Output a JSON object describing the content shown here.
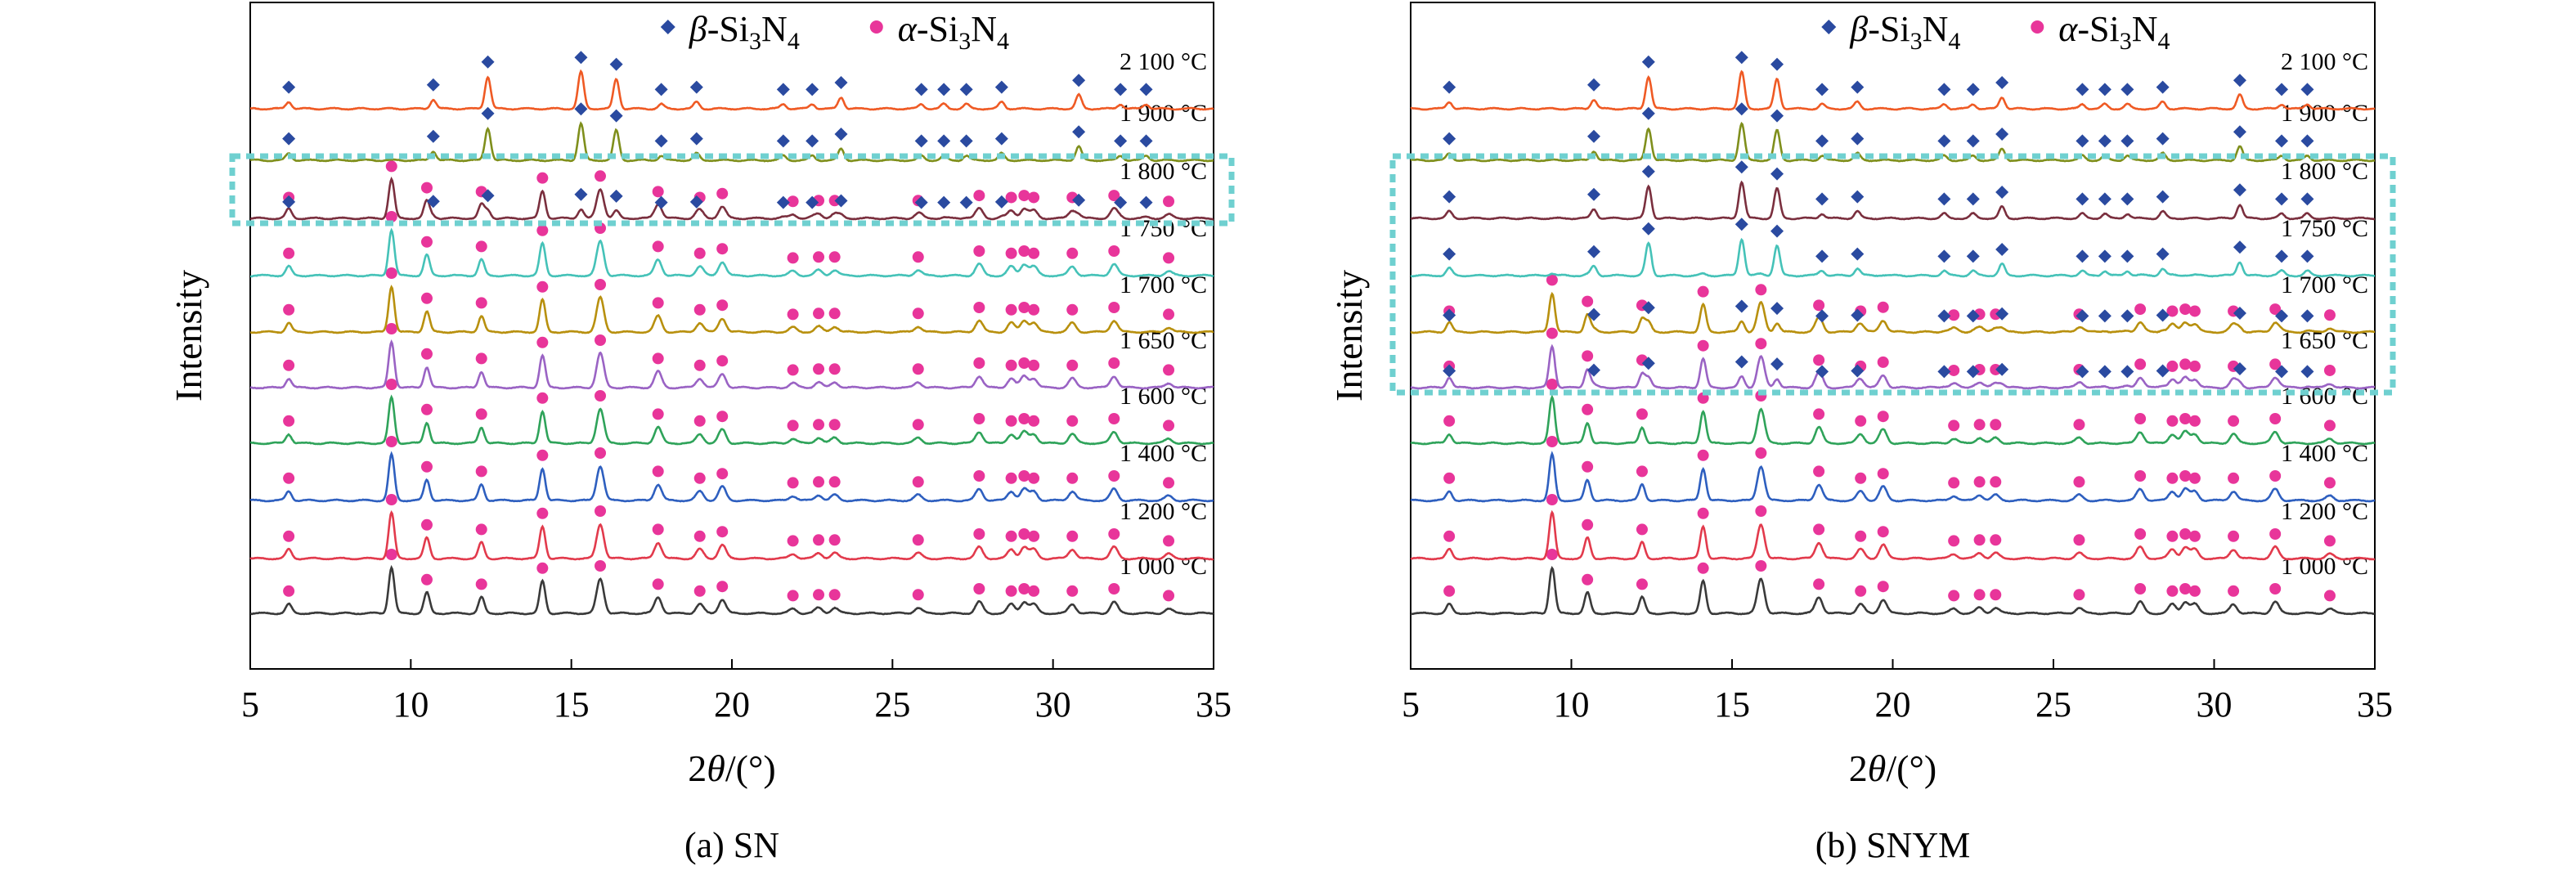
{
  "figure": {
    "panels": [
      {
        "id": "a",
        "caption": "(a) SN",
        "xlabel": "2θ/(°)",
        "xlabel_main": "2",
        "xlabel_italic": "θ",
        "xlabel_tail": "/(°)",
        "ylabel": "Intensity",
        "legend": {
          "beta": "β-Si3N4",
          "alpha": "α-Si3N4"
        },
        "highlight_temps": [
          "1 800 °C"
        ]
      },
      {
        "id": "b",
        "caption": "(b) SNYM",
        "xlabel": "2θ/(°)",
        "xlabel_main": "2",
        "xlabel_italic": "θ",
        "xlabel_tail": "/(°)",
        "ylabel": "Intensity",
        "legend": {
          "beta": "β-Si3N4",
          "alpha": "α-Si3N4"
        },
        "highlight_temps": [
          "1 800 °C",
          "1 750 °C",
          "1 700 °C",
          "1 650 °C"
        ]
      }
    ],
    "legend_beta_prefix": "β",
    "legend_alpha_prefix": "α",
    "legend_suffix": "-Si",
    "legend_sub1": "3",
    "legend_mid": "N",
    "legend_sub2": "4"
  },
  "chart_data": [
    {
      "type": "line",
      "title": "",
      "caption": "(a) SN",
      "xlabel": "2θ/(°)",
      "ylabel": "Intensity",
      "xlim": [
        5,
        35
      ],
      "xticks": [
        5,
        10,
        15,
        20,
        25,
        30,
        35
      ],
      "ylim": [
        0,
        13
      ],
      "legend": [
        "β-Si3N4",
        "α-Si3N4"
      ],
      "legend_position": "top",
      "grid": false,
      "colors": {
        "1 000 °C": "#3a3a3a",
        "1 200 °C": "#e23a4c",
        "1 400 °C": "#2e5fbf",
        "1 600 °C": "#2fa35a",
        "1 650 °C": "#9a63c4",
        "1 700 °C": "#b8900e",
        "1 750 °C": "#45c2b8",
        "1 800 °C": "#7a2f3e",
        "1 900 °C": "#7f8f1c",
        "2 100 °C": "#ef5a24",
        "alpha_marker": "#e8359a",
        "beta_marker": "#2a4aa0",
        "highlight_box": "#6fd0d0"
      },
      "series": [
        {
          "name": "1 000 °C",
          "phase": "alpha",
          "alpha_fraction": 1.0,
          "beta_fraction": 0.0
        },
        {
          "name": "1 200 °C",
          "phase": "alpha",
          "alpha_fraction": 1.0,
          "beta_fraction": 0.0
        },
        {
          "name": "1 400 °C",
          "phase": "alpha",
          "alpha_fraction": 1.0,
          "beta_fraction": 0.0
        },
        {
          "name": "1 600 °C",
          "phase": "alpha",
          "alpha_fraction": 1.0,
          "beta_fraction": 0.0
        },
        {
          "name": "1 650 °C",
          "phase": "alpha",
          "alpha_fraction": 1.0,
          "beta_fraction": 0.0
        },
        {
          "name": "1 700 °C",
          "phase": "alpha",
          "alpha_fraction": 1.0,
          "beta_fraction": 0.0
        },
        {
          "name": "1 750 °C",
          "phase": "alpha",
          "alpha_fraction": 1.0,
          "beta_fraction": 0.0
        },
        {
          "name": "1 800 °C",
          "phase": "mixed",
          "alpha_fraction": 0.85,
          "beta_fraction": 0.25
        },
        {
          "name": "1 900 °C",
          "phase": "beta",
          "alpha_fraction": 0.0,
          "beta_fraction": 1.0
        },
        {
          "name": "2 100 °C",
          "phase": "beta",
          "alpha_fraction": 0.0,
          "beta_fraction": 1.0
        }
      ]
    },
    {
      "type": "line",
      "title": "",
      "caption": "(b) SNYM",
      "xlabel": "2θ/(°)",
      "ylabel": "Intensity",
      "xlim": [
        5,
        35
      ],
      "xticks": [
        5,
        10,
        15,
        20,
        25,
        30,
        35
      ],
      "ylim": [
        0,
        13
      ],
      "legend": [
        "β-Si3N4",
        "α-Si3N4"
      ],
      "legend_position": "top",
      "grid": false,
      "colors": {
        "1 000 °C": "#3a3a3a",
        "1 200 °C": "#e23a4c",
        "1 400 °C": "#2e5fbf",
        "1 600 °C": "#2fa35a",
        "1 650 °C": "#9a63c4",
        "1 700 °C": "#b8900e",
        "1 750 °C": "#45c2b8",
        "1 800 °C": "#7a2f3e",
        "1 900 °C": "#7f8f1c",
        "2 100 °C": "#ef5a24",
        "alpha_marker": "#e8359a",
        "beta_marker": "#2a4aa0",
        "highlight_box": "#6fd0d0"
      },
      "series": [
        {
          "name": "1 000 °C",
          "phase": "alpha",
          "alpha_fraction": 1.0,
          "beta_fraction": 0.0
        },
        {
          "name": "1 200 °C",
          "phase": "alpha",
          "alpha_fraction": 1.0,
          "beta_fraction": 0.0
        },
        {
          "name": "1 400 °C",
          "phase": "alpha",
          "alpha_fraction": 1.0,
          "beta_fraction": 0.0
        },
        {
          "name": "1 600 °C",
          "phase": "alpha",
          "alpha_fraction": 1.0,
          "beta_fraction": 0.0
        },
        {
          "name": "1 650 °C",
          "phase": "mixed",
          "alpha_fraction": 0.9,
          "beta_fraction": 0.3
        },
        {
          "name": "1 700 °C",
          "phase": "mixed",
          "alpha_fraction": 0.85,
          "beta_fraction": 0.3
        },
        {
          "name": "1 750 °C",
          "phase": "beta",
          "alpha_fraction": 0.05,
          "beta_fraction": 1.0
        },
        {
          "name": "1 800 °C",
          "phase": "beta",
          "alpha_fraction": 0.0,
          "beta_fraction": 1.0
        },
        {
          "name": "1 900 °C",
          "phase": "beta",
          "alpha_fraction": 0.0,
          "beta_fraction": 1.0
        },
        {
          "name": "2 100 °C",
          "phase": "beta",
          "alpha_fraction": 0.0,
          "beta_fraction": 1.0
        }
      ]
    }
  ],
  "reference_peaks": {
    "alpha": [
      6.2,
      9.4,
      10.5,
      12.2,
      14.1,
      15.9,
      17.7,
      19.0,
      19.7,
      21.9,
      22.7,
      23.2,
      25.8,
      27.7,
      28.7,
      29.1,
      29.4,
      30.6,
      31.9,
      33.6
    ],
    "alpha_rel_intensity": [
      0.2,
      1.0,
      0.45,
      0.35,
      0.7,
      0.75,
      0.35,
      0.2,
      0.3,
      0.1,
      0.12,
      0.12,
      0.12,
      0.25,
      0.2,
      0.25,
      0.2,
      0.2,
      0.25,
      0.1
    ],
    "beta": [
      6.2,
      10.7,
      12.4,
      15.3,
      16.4,
      17.8,
      18.9,
      21.6,
      22.5,
      23.4,
      25.9,
      26.6,
      27.3,
      28.4,
      30.8,
      32.1,
      32.9
    ],
    "beta_rel_intensity": [
      0.15,
      0.2,
      0.7,
      0.8,
      0.65,
      0.1,
      0.15,
      0.1,
      0.1,
      0.25,
      0.1,
      0.1,
      0.1,
      0.15,
      0.3,
      0.1,
      0.1
    ]
  }
}
